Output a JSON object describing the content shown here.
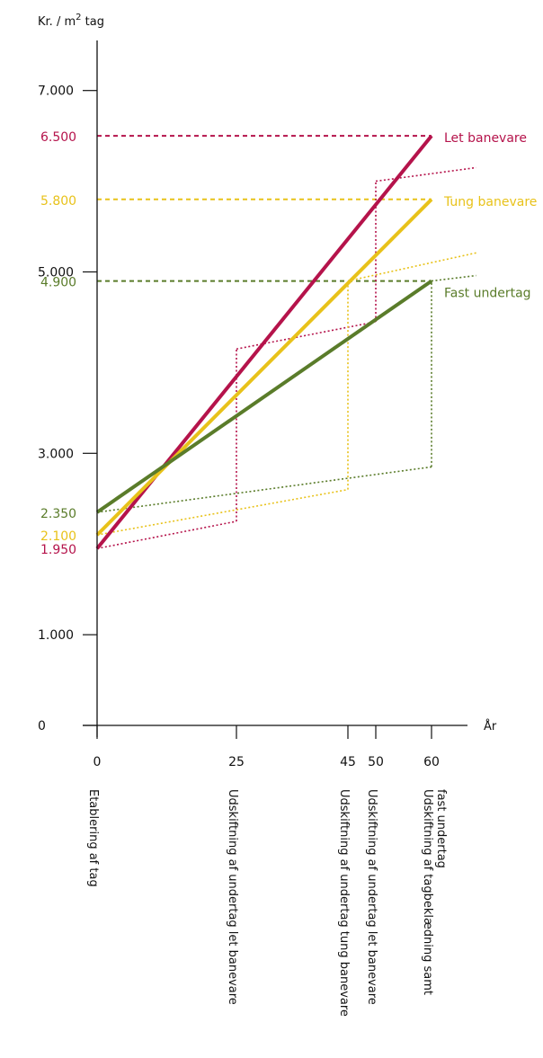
{
  "chart_data": {
    "type": "line",
    "ylabel_prefix": "Kr. / m",
    "ylabel_sup": "2",
    "ylabel_suffix": " tag",
    "xlabel": "År",
    "ylim": [
      0,
      7000
    ],
    "xlim": [
      0,
      60
    ],
    "yticks": [
      {
        "value": 0,
        "label": "0"
      },
      {
        "value": 1000,
        "label": "1.000"
      },
      {
        "value": 3000,
        "label": "3.000"
      },
      {
        "value": 5000,
        "label": "5.000"
      },
      {
        "value": 7000,
        "label": "7.000"
      }
    ],
    "xticks": [
      {
        "value": 0,
        "label": "0"
      },
      {
        "value": 25,
        "label": "25"
      },
      {
        "value": 45,
        "label": "45"
      },
      {
        "value": 50,
        "label": "50"
      },
      {
        "value": 60,
        "label": "60"
      }
    ],
    "x_events": [
      {
        "x": 0,
        "lines": [
          "Etablering af tag"
        ]
      },
      {
        "x": 25,
        "lines": [
          "Udskiftning af undertag let banevare"
        ]
      },
      {
        "x": 45,
        "lines": [
          "Udskiftning af undertag tung banevare"
        ]
      },
      {
        "x": 50,
        "lines": [
          "Udskiftning af undertag let banevare"
        ]
      },
      {
        "x": 60,
        "lines": [
          "Udskiftning af tagbeklædning samt",
          "fast undertag"
        ]
      }
    ],
    "series": [
      {
        "name": "Let banevare",
        "color": "#b5134b",
        "start_label": "1.950",
        "end_label": "6.500",
        "total_line": [
          [
            0,
            1950
          ],
          [
            60,
            6500
          ]
        ],
        "dotted_segments": [
          [
            [
              0,
              1950
            ],
            [
              25,
              2250
            ]
          ],
          [
            [
              25,
              2250
            ],
            [
              25,
              4150
            ]
          ],
          [
            [
              25,
              4150
            ],
            [
              50,
              4450
            ]
          ],
          [
            [
              50,
              4450
            ],
            [
              50,
              6000
            ]
          ],
          [
            [
              50,
              6000
            ],
            [
              68,
              6150
            ]
          ]
        ]
      },
      {
        "name": "Tung banevare",
        "color": "#e8c21a",
        "start_label": "2.100",
        "end_label": "5.800",
        "total_line": [
          [
            0,
            2100
          ],
          [
            60,
            5800
          ]
        ],
        "dotted_segments": [
          [
            [
              0,
              2100
            ],
            [
              45,
              2600
            ]
          ],
          [
            [
              45,
              2600
            ],
            [
              45,
              4900
            ]
          ],
          [
            [
              45,
              4900
            ],
            [
              68,
              5210
            ]
          ]
        ]
      },
      {
        "name": "Fast undertag",
        "color": "#5a7c2a",
        "start_label": "2.350",
        "end_label": "4.900",
        "total_line": [
          [
            0,
            2350
          ],
          [
            60,
            4900
          ]
        ],
        "dotted_segments": [
          [
            [
              0,
              2350
            ],
            [
              60,
              2850
            ]
          ],
          [
            [
              60,
              2850
            ],
            [
              60,
              4900
            ]
          ],
          [
            [
              60,
              4900
            ],
            [
              68,
              4960
            ]
          ]
        ]
      }
    ]
  }
}
